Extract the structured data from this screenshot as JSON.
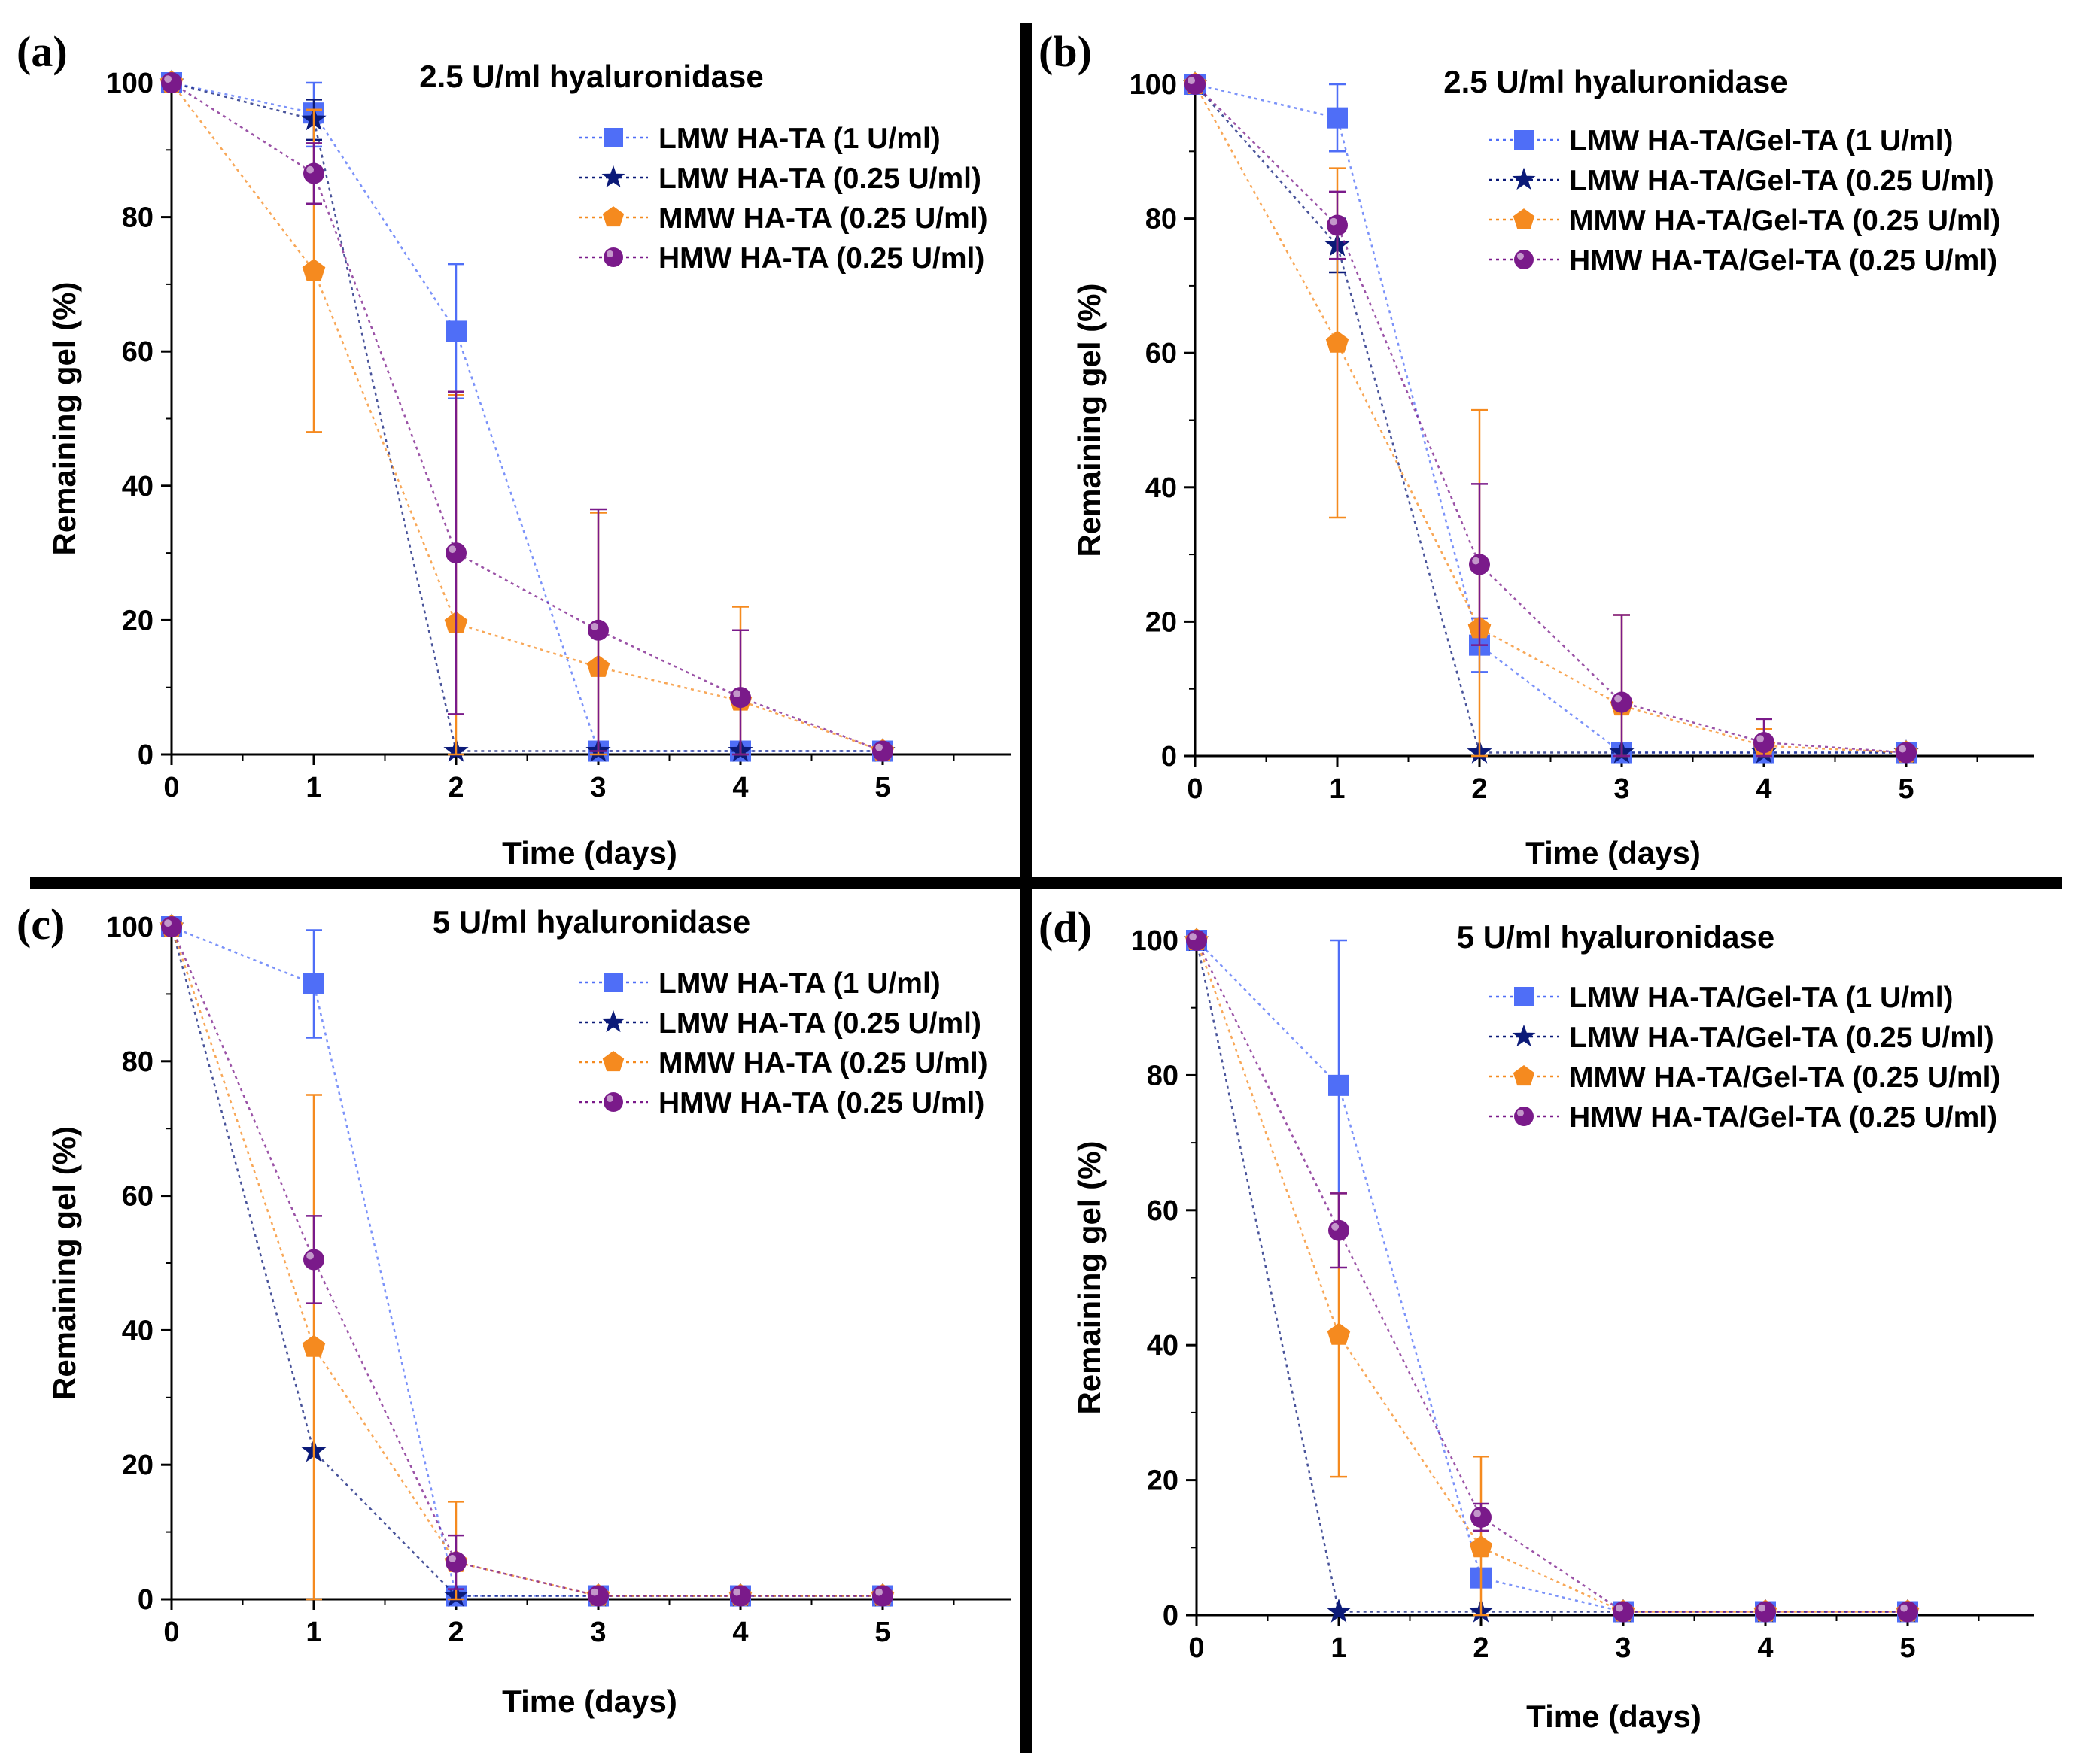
{
  "chart_data": [
    {
      "type": "line",
      "panel_label": "(a)",
      "title": "2.5 U/ml hyaluronidase",
      "xlabel": "Time (days)",
      "ylabel": "Remaining gel (%)",
      "xlim": [
        0,
        6
      ],
      "ylim": [
        0,
        100
      ],
      "x_ticks": [
        "0",
        "1",
        "2",
        "3",
        "4",
        "5"
      ],
      "y_ticks": [
        "0",
        "20",
        "40",
        "60",
        "80",
        "100"
      ],
      "x": [
        0,
        1,
        2,
        3,
        4,
        5
      ],
      "legend_position": "top-right",
      "series": [
        {
          "name": "LMW HA-TA (1 U/ml)",
          "color": "#4f6ef7",
          "marker": "square",
          "values": [
            100,
            95.5,
            63,
            0.5,
            0.5,
            0.5
          ],
          "error": [
            0,
            5,
            10,
            0,
            0,
            0
          ]
        },
        {
          "name": "LMW HA-TA (0.25 U/ml)",
          "color": "#0b1a78",
          "marker": "star",
          "values": [
            100,
            94.5,
            0.5,
            0.5,
            0.5,
            0.5
          ],
          "error": [
            0,
            3,
            0,
            0,
            0,
            0
          ]
        },
        {
          "name": "MMW HA-TA (0.25 U/ml)",
          "color": "#f58a1f",
          "marker": "pentagon",
          "values": [
            100,
            72,
            19.5,
            13,
            8,
            0.5
          ],
          "error": [
            0,
            24,
            34,
            23,
            14,
            0
          ]
        },
        {
          "name": "HMW HA-TA (0.25 U/ml)",
          "color": "#7a1a8a",
          "marker": "sphere",
          "values": [
            100,
            86.5,
            30,
            18.5,
            8.5,
            0.5
          ],
          "error": [
            0,
            4.5,
            24,
            18,
            10,
            0
          ]
        }
      ]
    },
    {
      "type": "line",
      "panel_label": "(b)",
      "title": "2.5 U/ml hyaluronidase",
      "xlabel": "Time (days)",
      "ylabel": "Remaining gel (%)",
      "xlim": [
        0,
        6
      ],
      "ylim": [
        0,
        100
      ],
      "x_ticks": [
        "0",
        "1",
        "2",
        "3",
        "4",
        "5"
      ],
      "y_ticks": [
        "0",
        "20",
        "40",
        "60",
        "80",
        "100"
      ],
      "x": [
        0,
        1,
        2,
        3,
        4,
        5
      ],
      "legend_position": "top-right",
      "series": [
        {
          "name": "LMW HA-TA/Gel-TA (1 U/ml)",
          "color": "#4f6ef7",
          "marker": "square",
          "values": [
            100,
            95,
            16.5,
            0.5,
            0.5,
            0.5
          ],
          "error": [
            0,
            5,
            4,
            0,
            0,
            0
          ]
        },
        {
          "name": "LMW HA-TA/Gel-TA (0.25 U/ml)",
          "color": "#0b1a78",
          "marker": "star",
          "values": [
            100,
            76,
            0.5,
            0.5,
            0.5,
            0.5
          ],
          "error": [
            0,
            4,
            0,
            0,
            0,
            0
          ]
        },
        {
          "name": "MMW HA-TA/Gel-TA (0.25 U/ml)",
          "color": "#f58a1f",
          "marker": "pentagon",
          "values": [
            100,
            61.5,
            19,
            7.5,
            1.5,
            0.5
          ],
          "error": [
            0,
            26,
            32.5,
            13.5,
            2.5,
            0
          ]
        },
        {
          "name": "HMW HA-TA/Gel-TA (0.25 U/ml)",
          "color": "#7a1a8a",
          "marker": "sphere",
          "values": [
            100,
            79,
            28.5,
            8,
            2,
            0.5
          ],
          "error": [
            0,
            5,
            12,
            13,
            3.5,
            0
          ]
        }
      ]
    },
    {
      "type": "line",
      "panel_label": "(c)",
      "title": "5 U/ml hyaluronidase",
      "xlabel": "Time (days)",
      "ylabel": "Remaining gel (%)",
      "xlim": [
        0,
        6
      ],
      "ylim": [
        0,
        100
      ],
      "x_ticks": [
        "0",
        "1",
        "2",
        "3",
        "4",
        "5"
      ],
      "y_ticks": [
        "0",
        "20",
        "40",
        "60",
        "80",
        "100"
      ],
      "x": [
        0,
        1,
        2,
        3,
        4,
        5
      ],
      "legend_position": "top-right",
      "series": [
        {
          "name": "LMW HA-TA (1 U/ml)",
          "color": "#4f6ef7",
          "marker": "square",
          "values": [
            100,
            91.5,
            0.5,
            0.5,
            0.5,
            0.5
          ],
          "error": [
            0,
            8,
            0,
            0,
            0,
            0
          ]
        },
        {
          "name": "LMW HA-TA (0.25 U/ml)",
          "color": "#0b1a78",
          "marker": "star",
          "values": [
            100,
            22,
            0.5,
            0.5,
            0.5,
            0.5
          ],
          "error": [
            0,
            0,
            0,
            0,
            0,
            0
          ]
        },
        {
          "name": "MMW HA-TA (0.25 U/ml)",
          "color": "#f58a1f",
          "marker": "pentagon",
          "values": [
            100,
            37.5,
            5.5,
            0.5,
            0.5,
            0.5
          ],
          "error": [
            0,
            37.5,
            9,
            0,
            0,
            0
          ]
        },
        {
          "name": "HMW HA-TA (0.25 U/ml)",
          "color": "#7a1a8a",
          "marker": "sphere",
          "values": [
            100,
            50.5,
            5.5,
            0.5,
            0.5,
            0.5
          ],
          "error": [
            0,
            6.5,
            4,
            0,
            0,
            0
          ]
        }
      ]
    },
    {
      "type": "line",
      "panel_label": "(d)",
      "title": "5 U/ml hyaluronidase",
      "xlabel": "Time (days)",
      "ylabel": "Remaining gel (%)",
      "xlim": [
        0,
        6
      ],
      "ylim": [
        0,
        100
      ],
      "x_ticks": [
        "0",
        "1",
        "2",
        "3",
        "4",
        "5"
      ],
      "y_ticks": [
        "0",
        "20",
        "40",
        "60",
        "80",
        "100"
      ],
      "x": [
        0,
        1,
        2,
        3,
        4,
        5
      ],
      "legend_position": "top-right",
      "series": [
        {
          "name": "LMW HA-TA/Gel-TA (1 U/ml)",
          "color": "#4f6ef7",
          "marker": "square",
          "values": [
            100,
            78.5,
            5.5,
            0.5,
            0.5,
            0.5
          ],
          "error": [
            0,
            21.5,
            0,
            0,
            0,
            0
          ]
        },
        {
          "name": "LMW HA-TA/Gel-TA (0.25 U/ml)",
          "color": "#0b1a78",
          "marker": "star",
          "values": [
            100,
            0.5,
            0.5,
            0.5,
            0.5,
            0.5
          ],
          "error": [
            0,
            0,
            0,
            0,
            0,
            0
          ]
        },
        {
          "name": "MMW HA-TA/Gel-TA (0.25 U/ml)",
          "color": "#f58a1f",
          "marker": "pentagon",
          "values": [
            100,
            41.5,
            10,
            0.5,
            0.5,
            0.5
          ],
          "error": [
            0,
            21,
            13.5,
            0,
            0,
            0
          ]
        },
        {
          "name": "HMW HA-TA/Gel-TA (0.25 U/ml)",
          "color": "#7a1a8a",
          "marker": "sphere",
          "values": [
            100,
            57,
            14.5,
            0.5,
            0.5,
            0.5
          ],
          "error": [
            0,
            5.5,
            2,
            0,
            0,
            0
          ]
        }
      ]
    }
  ]
}
